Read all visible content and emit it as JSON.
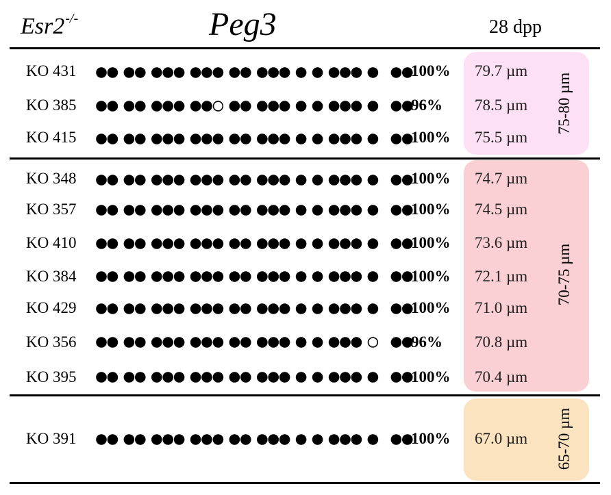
{
  "header": {
    "genotype": "Esr2",
    "genotype_superscript": "-/-",
    "gene": "Peg3",
    "age": "28 dpp"
  },
  "dot_groups": [
    2,
    2,
    3,
    3,
    2,
    3,
    1,
    1,
    3,
    1,
    2
  ],
  "groups": [
    {
      "range": "75-80 µm",
      "color": "#fde0f4",
      "rows": [
        {
          "id": "KO 431",
          "percent": "100%",
          "size": "79.7 µm",
          "unmethylated": []
        },
        {
          "id": "KO 385",
          "percent": "96%",
          "size": "78.5 µm",
          "unmethylated": [
            9
          ]
        },
        {
          "id": "KO 415",
          "percent": "100%",
          "size": "75.5 µm",
          "unmethylated": []
        }
      ]
    },
    {
      "range": "70-75 µm",
      "color": "#fad0d4",
      "rows": [
        {
          "id": "KO 348",
          "percent": "100%",
          "size": "74.7 µm",
          "unmethylated": []
        },
        {
          "id": "KO 357",
          "percent": "100%",
          "size": "74.5 µm",
          "unmethylated": []
        },
        {
          "id": "KO 410",
          "percent": "100%",
          "size": "73.6 µm",
          "unmethylated": []
        },
        {
          "id": "KO 384",
          "percent": "100%",
          "size": "72.1 µm",
          "unmethylated": []
        },
        {
          "id": "KO 429",
          "percent": "100%",
          "size": "71.0 µm",
          "unmethylated": []
        },
        {
          "id": "KO 356",
          "percent": "96%",
          "size": "70.8 µm",
          "unmethylated": [
            20
          ]
        },
        {
          "id": "KO 395",
          "percent": "100%",
          "size": "70.4 µm",
          "unmethylated": []
        }
      ]
    },
    {
      "range": "65-70 µm",
      "color": "#fbe3c0",
      "rows": [
        {
          "id": "KO 391",
          "percent": "100%",
          "size": "67.0 µm",
          "unmethylated": []
        }
      ]
    }
  ]
}
